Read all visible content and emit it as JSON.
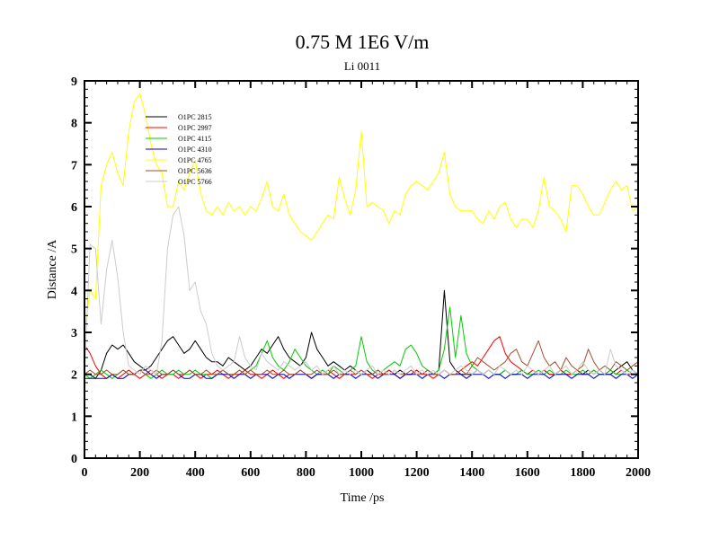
{
  "chart_data": {
    "type": "line",
    "title": "0.75 M 1E6 V/m",
    "subtitle": "Li 0011",
    "xlabel": "Time /ps",
    "ylabel": "Distance /A",
    "xlim": [
      0,
      2000
    ],
    "ylim": [
      0,
      9
    ],
    "xticks": [
      0,
      200,
      400,
      600,
      800,
      1000,
      1200,
      1400,
      1600,
      1800,
      2000
    ],
    "yticks": [
      0,
      1,
      2,
      3,
      4,
      5,
      6,
      7,
      8,
      9
    ],
    "grid": false,
    "legend_position": "top-left",
    "x": [
      0,
      20,
      40,
      60,
      80,
      100,
      120,
      140,
      160,
      180,
      200,
      220,
      240,
      260,
      280,
      300,
      320,
      340,
      360,
      380,
      400,
      420,
      440,
      460,
      480,
      500,
      520,
      540,
      560,
      580,
      600,
      620,
      640,
      660,
      680,
      700,
      720,
      740,
      760,
      780,
      800,
      820,
      840,
      860,
      880,
      900,
      920,
      940,
      960,
      980,
      1000,
      1020,
      1040,
      1060,
      1080,
      1100,
      1120,
      1140,
      1160,
      1180,
      1200,
      1220,
      1240,
      1260,
      1280,
      1300,
      1320,
      1340,
      1360,
      1380,
      1400,
      1420,
      1440,
      1460,
      1480,
      1500,
      1520,
      1540,
      1560,
      1580,
      1600,
      1620,
      1640,
      1660,
      1680,
      1700,
      1720,
      1740,
      1760,
      1780,
      1800,
      1820,
      1840,
      1860,
      1880,
      1900,
      1920,
      1940,
      1960,
      1980,
      2000
    ],
    "series": [
      {
        "name": "O1PC 2815",
        "color": "#000000",
        "values": [
          2.0,
          2.0,
          1.9,
          2.1,
          2.5,
          2.7,
          2.6,
          2.7,
          2.5,
          2.3,
          2.2,
          2.1,
          2.2,
          2.4,
          2.6,
          2.8,
          2.9,
          2.7,
          2.5,
          2.6,
          2.8,
          2.6,
          2.4,
          2.3,
          2.3,
          2.2,
          2.4,
          2.3,
          2.2,
          2.1,
          2.2,
          2.4,
          2.6,
          2.5,
          2.7,
          2.9,
          2.6,
          2.4,
          2.3,
          2.2,
          2.4,
          3.0,
          2.6,
          2.4,
          2.2,
          2.3,
          2.2,
          2.1,
          2.2,
          2.1,
          2.0,
          2.1,
          2.0,
          2.1,
          2.0,
          2.1,
          2.0,
          2.1,
          2.0,
          2.0,
          2.1,
          2.0,
          2.1,
          2.0,
          2.1,
          4.0,
          2.3,
          2.1,
          2.0,
          2.0,
          2.0,
          2.1,
          2.0,
          2.1,
          2.0,
          2.0,
          2.1,
          2.0,
          2.0,
          2.1,
          2.0,
          2.1,
          2.0,
          2.1,
          2.0,
          2.0,
          2.1,
          2.0,
          2.0,
          2.1,
          2.0,
          2.1,
          2.0,
          2.1,
          2.0,
          2.0,
          2.1,
          2.2,
          2.3,
          2.1,
          2.0
        ]
      },
      {
        "name": "O1PC 2997",
        "color": "#ff0000",
        "values": [
          2.7,
          2.5,
          2.2,
          2.0,
          1.9,
          2.0,
          1.9,
          2.0,
          2.1,
          2.0,
          1.9,
          2.0,
          2.1,
          2.0,
          1.9,
          2.0,
          2.0,
          1.9,
          2.0,
          2.1,
          2.0,
          1.9,
          2.0,
          2.0,
          2.1,
          2.0,
          1.9,
          2.0,
          2.0,
          2.1,
          2.0,
          2.0,
          1.9,
          2.0,
          2.1,
          2.0,
          1.9,
          2.0,
          2.0,
          2.1,
          2.0,
          1.9,
          2.0,
          2.0,
          2.1,
          2.0,
          1.9,
          2.0,
          2.0,
          2.0,
          2.1,
          2.0,
          1.9,
          2.0,
          2.0,
          2.1,
          2.0,
          1.9,
          2.0,
          2.0,
          2.1,
          2.0,
          2.0,
          1.9,
          2.0,
          2.1,
          2.0,
          2.0,
          2.1,
          2.2,
          2.3,
          2.2,
          2.4,
          2.6,
          2.8,
          2.9,
          2.5,
          2.3,
          2.2,
          2.1,
          2.0,
          2.1,
          2.0,
          2.1,
          2.0,
          2.0,
          2.1,
          2.0,
          2.0,
          2.1,
          2.0,
          2.0,
          2.1,
          2.0,
          2.0,
          2.1,
          2.0,
          2.1,
          2.0,
          2.0,
          2.0
        ]
      },
      {
        "name": "O1PC 4115",
        "color": "#00cc00",
        "values": [
          2.0,
          1.9,
          2.0,
          2.1,
          2.0,
          1.9,
          2.0,
          2.1,
          2.0,
          2.0,
          2.1,
          2.0,
          1.9,
          2.0,
          2.1,
          2.0,
          2.0,
          2.1,
          2.0,
          2.0,
          2.1,
          2.0,
          2.0,
          1.9,
          2.0,
          2.1,
          2.0,
          2.0,
          2.1,
          2.0,
          2.1,
          2.2,
          2.5,
          2.8,
          2.4,
          2.2,
          2.1,
          2.3,
          2.6,
          2.4,
          2.2,
          2.1,
          2.0,
          2.1,
          2.0,
          2.2,
          2.1,
          2.0,
          2.1,
          2.2,
          2.9,
          2.3,
          2.1,
          2.0,
          2.1,
          2.2,
          2.3,
          2.2,
          2.6,
          2.7,
          2.5,
          2.2,
          2.1,
          2.0,
          2.1,
          2.6,
          3.6,
          2.4,
          3.4,
          2.5,
          2.2,
          2.1,
          2.0,
          2.1,
          2.0,
          2.0,
          2.1,
          2.0,
          2.0,
          2.1,
          2.0,
          2.0,
          2.1,
          2.0,
          2.1,
          2.0,
          2.0,
          2.1,
          2.0,
          2.0,
          2.1,
          2.0,
          2.1,
          2.0,
          2.0,
          2.1,
          2.0,
          2.0,
          2.1,
          2.0,
          2.0
        ]
      },
      {
        "name": "O1PC 4310",
        "color": "#0000cc",
        "values": [
          1.9,
          1.9,
          1.9,
          1.9,
          1.9,
          2.0,
          1.9,
          1.9,
          2.0,
          2.0,
          2.1,
          2.1,
          2.0,
          1.9,
          2.0,
          2.0,
          2.1,
          2.0,
          1.9,
          1.9,
          2.0,
          2.0,
          1.9,
          1.9,
          2.0,
          2.0,
          2.0,
          1.9,
          2.0,
          2.0,
          1.9,
          2.0,
          2.0,
          2.0,
          1.9,
          2.0,
          2.0,
          1.9,
          2.0,
          2.0,
          2.0,
          1.9,
          2.0,
          2.0,
          2.0,
          1.9,
          2.0,
          2.0,
          2.0,
          1.9,
          2.0,
          2.0,
          2.0,
          1.9,
          2.0,
          2.0,
          2.0,
          1.9,
          2.0,
          2.0,
          2.0,
          1.9,
          2.0,
          2.0,
          2.0,
          1.9,
          2.0,
          2.0,
          2.0,
          1.9,
          2.0,
          2.0,
          2.0,
          1.9,
          2.0,
          2.0,
          1.9,
          2.0,
          2.0,
          2.0,
          1.9,
          2.0,
          2.0,
          2.0,
          1.9,
          2.0,
          2.0,
          2.0,
          1.9,
          2.0,
          2.0,
          2.0,
          1.9,
          2.0,
          2.0,
          2.0,
          1.9,
          2.0,
          2.0,
          1.9,
          2.0
        ]
      },
      {
        "name": "O1PC 4765",
        "color": "#ffff00",
        "values": [
          3.0,
          4.0,
          3.8,
          6.5,
          7.0,
          7.3,
          6.8,
          6.5,
          7.8,
          8.5,
          8.7,
          8.2,
          7.5,
          7.0,
          6.8,
          6.0,
          6.0,
          6.6,
          6.4,
          6.8,
          7.1,
          6.3,
          5.9,
          5.8,
          6.0,
          5.8,
          6.1,
          5.9,
          6.0,
          5.8,
          6.0,
          5.9,
          6.2,
          6.6,
          6.0,
          5.9,
          6.3,
          5.8,
          5.6,
          5.4,
          5.3,
          5.2,
          5.4,
          5.6,
          5.8,
          5.7,
          6.7,
          6.2,
          5.8,
          6.4,
          7.8,
          6.0,
          6.1,
          6.0,
          5.9,
          5.6,
          5.9,
          5.8,
          6.3,
          6.5,
          6.6,
          6.5,
          6.4,
          6.6,
          6.8,
          7.3,
          6.3,
          6.0,
          5.9,
          5.9,
          5.9,
          5.7,
          5.6,
          5.9,
          5.7,
          6.0,
          6.1,
          5.7,
          5.5,
          5.7,
          5.7,
          5.5,
          5.9,
          6.7,
          6.0,
          5.9,
          5.7,
          5.4,
          6.5,
          6.5,
          6.3,
          6.0,
          5.8,
          5.8,
          6.1,
          6.4,
          6.6,
          6.4,
          6.5,
          5.9,
          6.0
        ]
      },
      {
        "name": "O1PC 5636",
        "color": "#a0522d",
        "values": [
          2.0,
          2.1,
          2.0,
          2.0,
          2.1,
          2.0,
          2.0,
          2.1,
          2.0,
          2.0,
          2.1,
          2.0,
          2.0,
          2.1,
          2.0,
          2.0,
          2.1,
          2.0,
          2.0,
          2.1,
          2.0,
          2.0,
          2.1,
          2.0,
          2.0,
          2.1,
          2.0,
          2.0,
          2.1,
          2.0,
          2.1,
          2.0,
          2.0,
          2.1,
          2.0,
          2.0,
          2.1,
          2.0,
          2.0,
          2.1,
          2.0,
          2.0,
          2.1,
          2.0,
          2.0,
          2.1,
          2.0,
          2.0,
          2.1,
          2.0,
          2.1,
          2.0,
          2.0,
          2.1,
          2.0,
          2.0,
          2.1,
          2.0,
          2.0,
          2.1,
          2.0,
          2.0,
          2.1,
          2.0,
          2.0,
          2.1,
          2.0,
          2.0,
          2.1,
          2.0,
          2.2,
          2.4,
          2.3,
          2.2,
          2.1,
          2.2,
          2.3,
          2.5,
          2.6,
          2.3,
          2.2,
          2.5,
          2.8,
          2.4,
          2.2,
          2.3,
          2.1,
          2.4,
          2.2,
          2.1,
          2.2,
          2.6,
          2.3,
          2.1,
          2.2,
          2.1,
          2.3,
          2.2,
          2.1,
          2.2,
          2.3
        ]
      },
      {
        "name": "O1PC 5766",
        "color": "#cccccc",
        "values": [
          2.0,
          5.1,
          5.0,
          3.2,
          4.5,
          5.2,
          4.3,
          3.0,
          2.2,
          2.1,
          2.0,
          2.2,
          2.1,
          2.0,
          2.8,
          5.0,
          5.8,
          6.0,
          5.3,
          4.0,
          4.2,
          3.5,
          3.2,
          2.5,
          2.2,
          2.1,
          2.2,
          2.3,
          2.9,
          2.4,
          2.2,
          2.1,
          2.5,
          2.3,
          2.2,
          2.1,
          2.3,
          2.2,
          2.1,
          2.2,
          2.3,
          2.1,
          2.2,
          2.0,
          2.1,
          2.2,
          2.0,
          2.1,
          2.0,
          2.1,
          2.0,
          2.1,
          2.2,
          2.0,
          2.1,
          2.0,
          2.1,
          2.0,
          2.1,
          2.2,
          2.0,
          2.1,
          2.0,
          2.1,
          2.0,
          2.1,
          2.0,
          2.1,
          2.2,
          2.1,
          2.0,
          2.1,
          2.0,
          2.1,
          2.0,
          2.2,
          2.1,
          2.0,
          2.1,
          2.0,
          2.2,
          2.1,
          2.0,
          2.1,
          2.2,
          2.0,
          2.1,
          2.2,
          2.0,
          2.1,
          2.3,
          2.1,
          2.0,
          2.1,
          2.0,
          2.6,
          2.2,
          2.1,
          2.0,
          2.1,
          2.0
        ]
      }
    ]
  }
}
